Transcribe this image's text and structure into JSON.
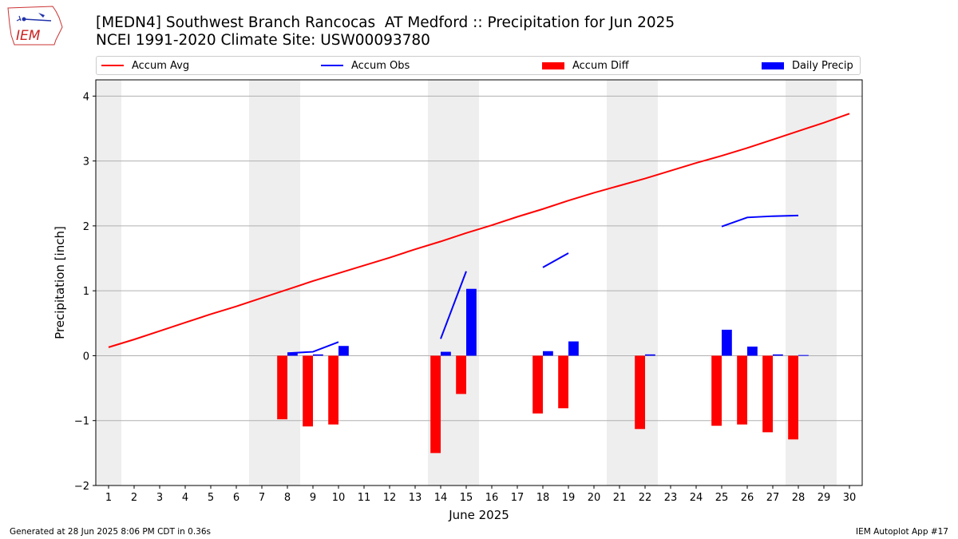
{
  "header": {
    "title": "[MEDN4] Southwest Branch Rancocas  AT Medford :: Precipitation for Jun 2025",
    "subtitle": "NCEI 1991-2020 Climate Site: USW00093780"
  },
  "logo": {
    "text": "IEM",
    "icon": "iem-logo-icon"
  },
  "footer": {
    "left": "Generated at 28 Jun 2025 8:06 PM CDT in 0.36s",
    "right": "IEM Autoplot App #17"
  },
  "colors": {
    "avg": "#ff0000",
    "obs": "#0000ff",
    "diff": "#ff0000",
    "daily": "#0000ff",
    "weekend": "#eeeeee",
    "grid": "#b0b0b0"
  },
  "chart_data": {
    "type": "bar",
    "xlabel": "June 2025",
    "ylabel": "Precipitation [inch]",
    "xlim": [
      0.5,
      30.5
    ],
    "ylim": [
      -2,
      4.25
    ],
    "yticks": [
      -2,
      -1,
      0,
      1,
      2,
      3,
      4
    ],
    "ytick_labels": [
      "−2",
      "−1",
      "0",
      "1",
      "2",
      "3",
      "4"
    ],
    "xticks": [
      1,
      2,
      3,
      4,
      5,
      6,
      7,
      8,
      9,
      10,
      11,
      12,
      13,
      14,
      15,
      16,
      17,
      18,
      19,
      20,
      21,
      22,
      23,
      24,
      25,
      26,
      27,
      28,
      29,
      30
    ],
    "grid": "y",
    "legend_placement": "top",
    "legend": [
      "Accum Avg",
      "Accum Obs",
      "Accum Diff",
      "Daily Precip"
    ],
    "weekends": [
      [
        0.5,
        1.5
      ],
      [
        6.5,
        8.5
      ],
      [
        13.5,
        15.5
      ],
      [
        20.5,
        22.5
      ],
      [
        27.5,
        29.5
      ]
    ],
    "accum_avg": {
      "name": "Accum Avg",
      "x": [
        1,
        2,
        3,
        4,
        5,
        6,
        7,
        8,
        9,
        10,
        11,
        12,
        13,
        14,
        15,
        16,
        17,
        18,
        19,
        20,
        21,
        22,
        23,
        24,
        25,
        26,
        27,
        28,
        29,
        30
      ],
      "y": [
        0.13,
        0.25,
        0.38,
        0.51,
        0.64,
        0.76,
        0.89,
        1.02,
        1.15,
        1.27,
        1.39,
        1.51,
        1.64,
        1.76,
        1.89,
        2.01,
        2.14,
        2.26,
        2.39,
        2.51,
        2.62,
        2.73,
        2.85,
        2.97,
        3.08,
        3.2,
        3.33,
        3.46,
        3.59,
        3.73
      ]
    },
    "accum_obs": {
      "name": "Accum Obs",
      "segments": [
        {
          "x": [
            8,
            9,
            10
          ],
          "y": [
            0.04,
            0.06,
            0.21
          ]
        },
        {
          "x": [
            14,
            15
          ],
          "y": [
            0.26,
            1.3
          ]
        },
        {
          "x": [
            18,
            19
          ],
          "y": [
            1.36,
            1.58
          ]
        },
        {
          "x": [
            25,
            26,
            27,
            28
          ],
          "y": [
            1.99,
            2.13,
            2.15,
            2.16
          ]
        }
      ]
    },
    "accum_diff": {
      "name": "Accum Diff",
      "x": [
        8,
        9,
        10,
        14,
        15,
        18,
        19,
        22,
        25,
        26,
        27,
        28
      ],
      "y": [
        -0.98,
        -1.09,
        -1.06,
        -1.5,
        -0.59,
        -0.89,
        -0.81,
        -1.13,
        -1.08,
        -1.06,
        -1.18,
        -1.29
      ]
    },
    "daily_precip": {
      "name": "Daily Precip",
      "x": [
        8,
        9,
        10,
        14,
        15,
        18,
        19,
        22,
        25,
        26,
        27,
        28
      ],
      "y": [
        0.04,
        0.02,
        0.15,
        0.06,
        1.03,
        0.07,
        0.22,
        0.02,
        0.4,
        0.14,
        0.02,
        0.01
      ]
    }
  }
}
